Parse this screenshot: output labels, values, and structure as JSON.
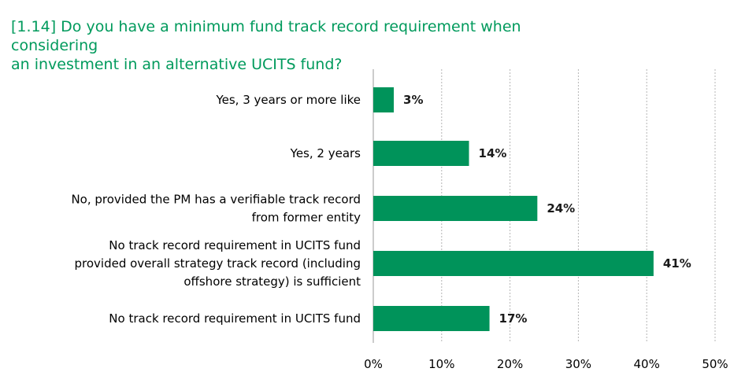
{
  "chart_data": {
    "type": "bar",
    "orientation": "horizontal",
    "title_lines": [
      "[1.14] Do you have a minimum fund track record requirement when considering",
      "an investment in an alternative UCITS fund?"
    ],
    "categories": [
      [
        "Yes, 3 years or more like"
      ],
      [
        "Yes, 2 years"
      ],
      [
        "No, provided the PM has a verifiable track record",
        "from former entity"
      ],
      [
        "No track record requirement in UCITS fund",
        "provided overall strategy track record (including",
        "offshore strategy) is sufficient"
      ],
      [
        "No track record requirement in UCITS fund"
      ]
    ],
    "values": [
      3,
      14,
      24,
      41,
      17
    ],
    "value_labels": [
      "3%",
      "14%",
      "24%",
      "41%",
      "17%"
    ],
    "xlim": [
      0,
      50
    ],
    "x_ticks": [
      0,
      10,
      20,
      30,
      40,
      50
    ],
    "x_tick_labels": [
      "0%",
      "10%",
      "20%",
      "30%",
      "40%",
      "50%"
    ],
    "grid": "vertical dotted",
    "bar_color": "#00935a",
    "title_color": "#009a5c"
  }
}
